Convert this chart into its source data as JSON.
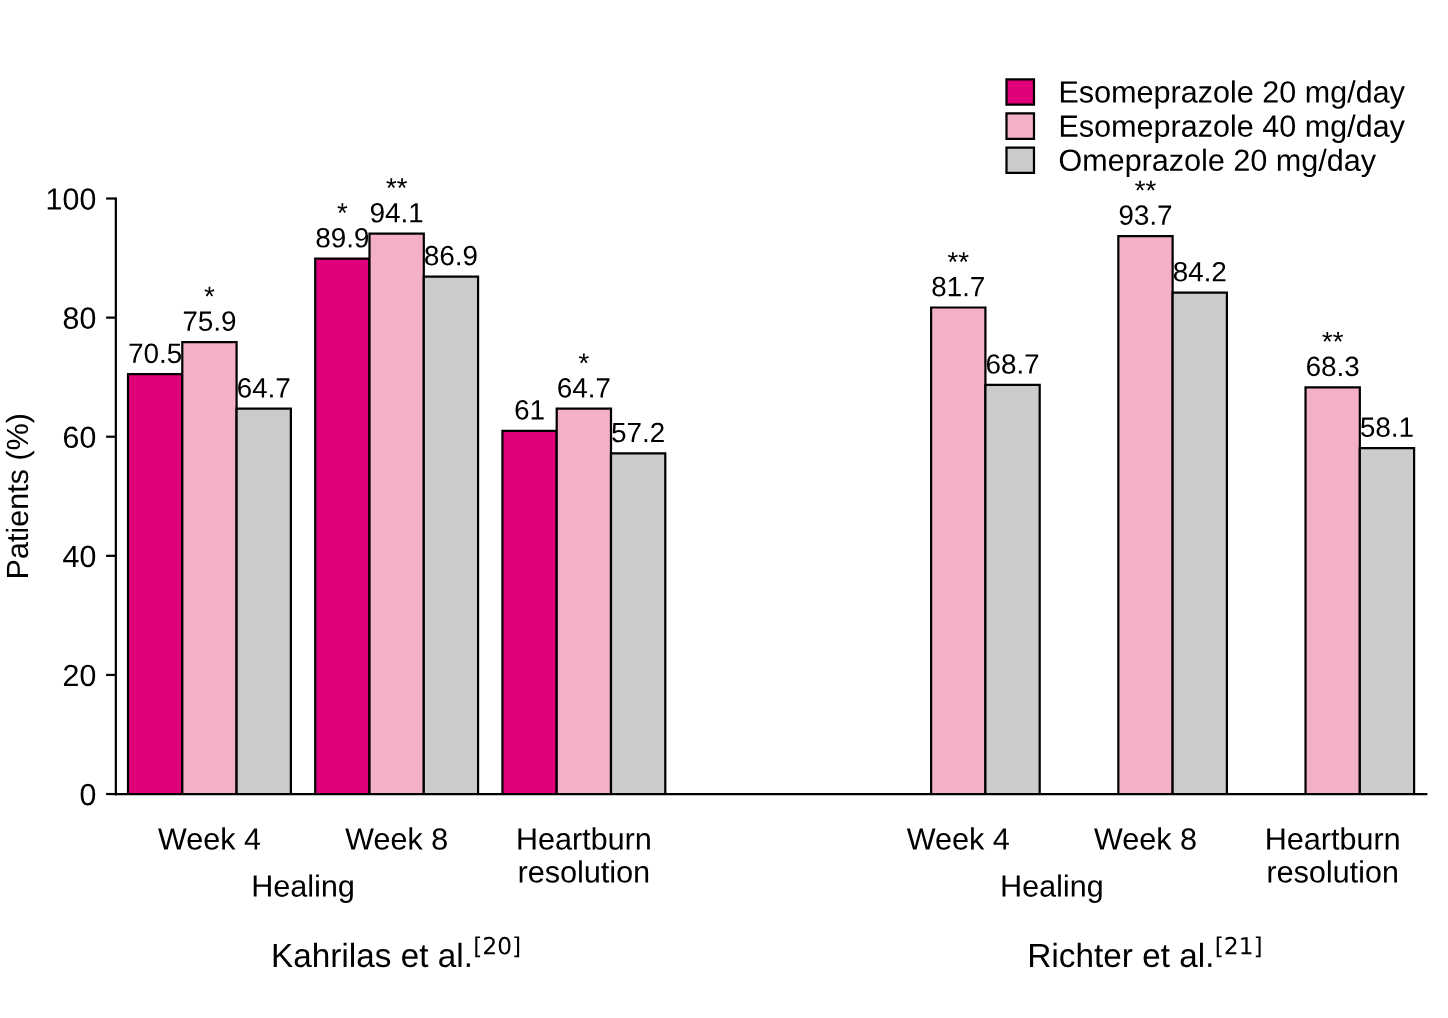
{
  "chart_data": {
    "type": "bar",
    "categories": [
      "Week 4",
      "Week 8",
      "Heartburn\nresolution",
      null,
      "Week 4",
      "Week 8",
      "Heartburn\nresolution"
    ],
    "ylabel": "Patients (%)",
    "ylim": [
      0,
      100
    ],
    "yticks": [
      0,
      20,
      40,
      60,
      80,
      100
    ],
    "grid": false,
    "legend": "top right",
    "series": [
      {
        "name": "Esomeprazole 20 mg/day",
        "color": "#e0007a",
        "values": [
          70.5,
          89.9,
          61,
          null,
          null,
          null,
          null
        ],
        "value_labels": [
          "70.5",
          "*\n89.9",
          "61",
          null,
          null,
          null,
          null
        ]
      },
      {
        "name": "Esomeprazole 40 mg/day",
        "color": "#f5b0c9",
        "values": [
          75.9,
          94.1,
          64.7,
          null,
          81.7,
          93.7,
          68.3
        ],
        "value_labels": [
          "*\n75.9",
          "**\n94.1",
          "*\n64.7",
          null,
          "**\n81.7",
          "**\n93.7",
          "**\n68.3"
        ]
      },
      {
        "name": "Omeprazole 20 mg/day",
        "color": "#cbcbcb",
        "values": [
          64.7,
          86.9,
          57.2,
          null,
          68.7,
          84.2,
          58.1
        ],
        "value_labels": [
          "64.7",
          "86.9",
          "57.2",
          null,
          "68.7",
          "84.2",
          "58.1"
        ]
      }
    ],
    "annotations": [
      "Healing",
      "Healing",
      "Kahrilas et al.$^{[20]}$",
      "Richter et al.$^{[21]}$"
    ]
  }
}
